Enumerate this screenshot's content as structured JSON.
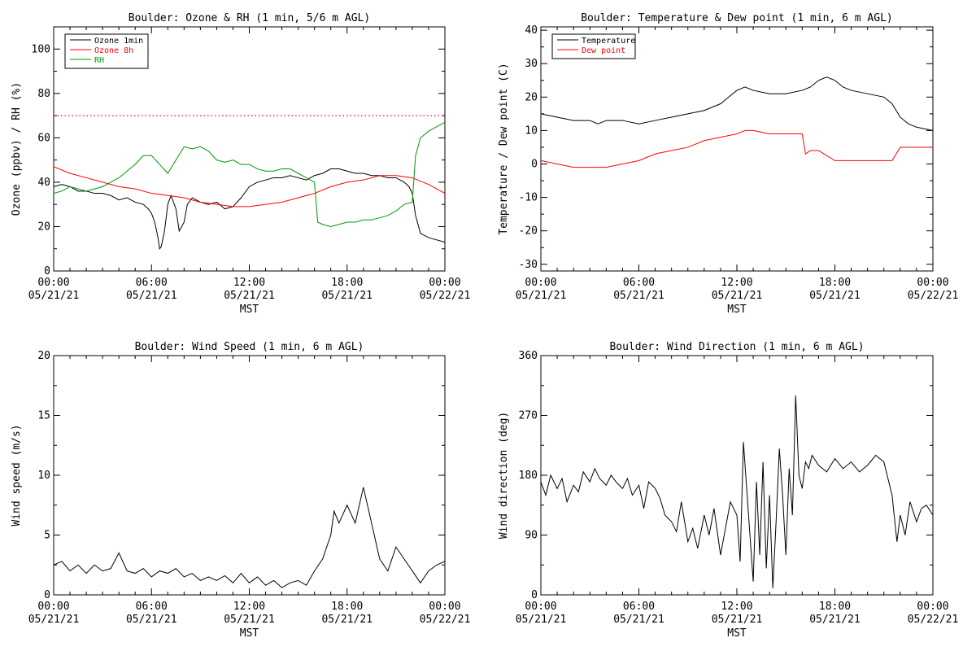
{
  "chart_data": [
    {
      "id": "ozone_rh",
      "type": "line",
      "title": "Boulder: Ozone & RH (1 min, 5/6 m AGL)",
      "xlabel": "MST",
      "ylabel": "Ozone (ppbv) / RH (%)",
      "ylim": [
        0,
        110
      ],
      "yticks": [
        0,
        20,
        40,
        60,
        80,
        100
      ],
      "xlim": [
        0,
        24
      ],
      "xticks": [
        {
          "v": 0,
          "top": "00:00",
          "bottom": "05/21/21"
        },
        {
          "v": 6,
          "top": "06:00",
          "bottom": "05/21/21"
        },
        {
          "v": 12,
          "top": "12:00",
          "bottom": "05/21/21"
        },
        {
          "v": 18,
          "top": "18:00",
          "bottom": "05/21/21"
        },
        {
          "v": 24,
          "top": "00:00",
          "bottom": "05/22/21"
        }
      ],
      "legend": "top-left",
      "reference_line": {
        "y": 70,
        "color": "#ff0000",
        "style": "dotted"
      },
      "series": [
        {
          "name": "Ozone 1min",
          "color": "#000000",
          "x": [
            0,
            0.5,
            1,
            1.5,
            2,
            2.5,
            3,
            3.5,
            4,
            4.5,
            5,
            5.5,
            5.8,
            6,
            6.2,
            6.4,
            6.5,
            6.6,
            6.8,
            7,
            7.2,
            7.5,
            7.7,
            8,
            8.2,
            8.5,
            9,
            9.5,
            10,
            10.5,
            11,
            11.5,
            12,
            12.5,
            13,
            13.5,
            14,
            14.5,
            15,
            15.5,
            16,
            16.5,
            17,
            17.5,
            18,
            18.5,
            19,
            19.5,
            20,
            20.5,
            21,
            21.5,
            21.8,
            22,
            22.2,
            22.5,
            23,
            23.5,
            24
          ],
          "y": [
            38,
            39,
            38,
            36,
            36,
            35,
            35,
            34,
            32,
            33,
            31,
            30,
            28,
            26,
            22,
            15,
            10,
            11,
            18,
            30,
            34,
            28,
            18,
            22,
            30,
            33,
            31,
            30,
            31,
            28,
            29,
            33,
            38,
            40,
            41,
            42,
            42,
            43,
            42,
            41,
            43,
            44,
            46,
            46,
            45,
            44,
            44,
            43,
            43,
            42,
            42,
            40,
            38,
            35,
            25,
            17,
            15,
            14,
            13
          ]
        },
        {
          "name": "Ozone 8h",
          "color": "#ff0000",
          "x": [
            0,
            1,
            2,
            3,
            4,
            5,
            6,
            7,
            8,
            9,
            10,
            11,
            12,
            13,
            14,
            15,
            16,
            17,
            18,
            19,
            20,
            21,
            22,
            23,
            24
          ],
          "y": [
            47,
            44,
            42,
            40,
            38,
            37,
            35,
            34,
            33,
            31,
            30,
            29,
            29,
            30,
            31,
            33,
            35,
            38,
            40,
            41,
            43,
            43,
            42,
            39,
            35
          ]
        },
        {
          "name": "RH",
          "color": "#009900",
          "x": [
            0,
            0.5,
            1,
            1.5,
            2,
            2.5,
            3,
            3.5,
            4,
            4.5,
            5,
            5.5,
            6,
            6.5,
            7,
            7.5,
            8,
            8.5,
            9,
            9.5,
            10,
            10.5,
            11,
            11.5,
            12,
            12.5,
            13,
            13.5,
            14,
            14.5,
            15,
            15.5,
            16,
            16.2,
            16.5,
            17,
            17.5,
            18,
            18.5,
            19,
            19.5,
            20,
            20.5,
            21,
            21.5,
            22,
            22.2,
            22.5,
            23,
            23.5,
            24
          ],
          "y": [
            35,
            36,
            38,
            37,
            36,
            37,
            38,
            40,
            42,
            45,
            48,
            52,
            52,
            48,
            44,
            50,
            56,
            55,
            56,
            54,
            50,
            49,
            50,
            48,
            48,
            46,
            45,
            45,
            46,
            46,
            44,
            42,
            40,
            22,
            21,
            20,
            21,
            22,
            22,
            23,
            23,
            24,
            25,
            27,
            30,
            31,
            52,
            60,
            63,
            65,
            67
          ]
        }
      ]
    },
    {
      "id": "temp_dew",
      "type": "line",
      "title": "Boulder: Temperature & Dew point (1 min, 6 m AGL)",
      "xlabel": "MST",
      "ylabel": "Temperature / Dew point (C)",
      "ylim": [
        -32,
        41
      ],
      "yticks": [
        -30,
        -20,
        -10,
        0,
        10,
        20,
        30,
        40
      ],
      "xlim": [
        0,
        24
      ],
      "xticks": [
        {
          "v": 0,
          "top": "00:00",
          "bottom": "05/21/21"
        },
        {
          "v": 6,
          "top": "06:00",
          "bottom": "05/21/21"
        },
        {
          "v": 12,
          "top": "12:00",
          "bottom": "05/21/21"
        },
        {
          "v": 18,
          "top": "18:00",
          "bottom": "05/21/21"
        },
        {
          "v": 24,
          "top": "00:00",
          "bottom": "05/22/21"
        }
      ],
      "legend": "top-left",
      "series": [
        {
          "name": "Temperature",
          "color": "#000000",
          "x": [
            0,
            1,
            2,
            3,
            3.5,
            4,
            5,
            6,
            7,
            8,
            9,
            10,
            11,
            11.5,
            12,
            12.5,
            13,
            14,
            15,
            16,
            16.5,
            17,
            17.5,
            18,
            18.5,
            19,
            20,
            21,
            21.5,
            22,
            22.5,
            23,
            24
          ],
          "y": [
            15,
            14,
            13,
            13,
            12,
            13,
            13,
            12,
            13,
            14,
            15,
            16,
            18,
            20,
            22,
            23,
            22,
            21,
            21,
            22,
            23,
            25,
            26,
            25,
            23,
            22,
            21,
            20,
            18,
            14,
            12,
            11,
            10
          ]
        },
        {
          "name": "Dew point",
          "color": "#ff0000",
          "x": [
            0,
            1,
            2,
            3,
            4,
            5,
            6,
            7,
            8,
            9,
            10,
            11,
            12,
            12.5,
            13,
            14,
            15,
            16,
            16.2,
            16.5,
            17,
            18,
            19,
            20,
            21,
            21.5,
            22,
            23,
            24
          ],
          "y": [
            1,
            0,
            -1,
            -1,
            -1,
            0,
            1,
            3,
            4,
            5,
            7,
            8,
            9,
            10,
            10,
            9,
            9,
            9,
            3,
            4,
            4,
            1,
            1,
            1,
            1,
            1,
            5,
            5,
            5
          ]
        }
      ]
    },
    {
      "id": "wind_speed",
      "type": "line",
      "title": "Boulder: Wind Speed (1 min, 6 m AGL)",
      "xlabel": "MST",
      "ylabel": "Wind speed (m/s)",
      "ylim": [
        0,
        20
      ],
      "yticks": [
        0,
        5,
        10,
        15,
        20
      ],
      "xlim": [
        0,
        24
      ],
      "xticks": [
        {
          "v": 0,
          "top": "00:00",
          "bottom": "05/21/21"
        },
        {
          "v": 6,
          "top": "06:00",
          "bottom": "05/21/21"
        },
        {
          "v": 12,
          "top": "12:00",
          "bottom": "05/21/21"
        },
        {
          "v": 18,
          "top": "18:00",
          "bottom": "05/21/21"
        },
        {
          "v": 24,
          "top": "00:00",
          "bottom": "05/22/21"
        }
      ],
      "series": [
        {
          "color": "#000000",
          "x": [
            0,
            0.5,
            1,
            1.5,
            2,
            2.5,
            3,
            3.5,
            4,
            4.5,
            5,
            5.5,
            6,
            6.5,
            7,
            7.5,
            8,
            8.5,
            9,
            9.5,
            10,
            10.5,
            11,
            11.5,
            12,
            12.5,
            13,
            13.5,
            14,
            14.5,
            15,
            15.5,
            16,
            16.5,
            17,
            17.2,
            17.5,
            18,
            18.5,
            19,
            19.5,
            20,
            20.5,
            21,
            21.5,
            22,
            22.5,
            23,
            23.5,
            24
          ],
          "y": [
            2.5,
            2.8,
            2,
            2.5,
            1.8,
            2.5,
            2,
            2.2,
            3.5,
            2,
            1.8,
            2.2,
            1.5,
            2,
            1.8,
            2.2,
            1.5,
            1.8,
            1.2,
            1.5,
            1.2,
            1.6,
            1,
            1.8,
            1,
            1.5,
            0.8,
            1.2,
            0.6,
            1,
            1.2,
            0.8,
            2,
            3,
            5,
            7,
            6,
            7.5,
            6,
            9,
            6,
            3,
            2,
            4,
            3,
            2,
            1,
            2,
            2.5,
            2.8
          ]
        }
      ]
    },
    {
      "id": "wind_dir",
      "type": "line",
      "title": "Boulder: Wind Direction (1 min, 6 m AGL)",
      "xlabel": "MST",
      "ylabel": "Wind direction (deg)",
      "ylim": [
        0,
        360
      ],
      "yticks": [
        0,
        90,
        180,
        270,
        360
      ],
      "xlim": [
        0,
        24
      ],
      "xticks": [
        {
          "v": 0,
          "top": "00:00",
          "bottom": "05/21/21"
        },
        {
          "v": 6,
          "top": "06:00",
          "bottom": "05/21/21"
        },
        {
          "v": 12,
          "top": "12:00",
          "bottom": "05/21/21"
        },
        {
          "v": 18,
          "top": "18:00",
          "bottom": "05/21/21"
        },
        {
          "v": 24,
          "top": "00:00",
          "bottom": "05/22/21"
        }
      ],
      "series": [
        {
          "color": "#000000",
          "x": [
            0,
            0.3,
            0.6,
            1,
            1.3,
            1.6,
            2,
            2.3,
            2.6,
            3,
            3.3,
            3.6,
            4,
            4.3,
            4.6,
            5,
            5.3,
            5.6,
            6,
            6.3,
            6.6,
            7,
            7.3,
            7.6,
            8,
            8.3,
            8.6,
            9,
            9.3,
            9.6,
            10,
            10.3,
            10.6,
            11,
            11.3,
            11.6,
            12,
            12.2,
            12.4,
            12.6,
            12.8,
            13,
            13.2,
            13.4,
            13.6,
            13.8,
            14,
            14.2,
            14.4,
            14.6,
            14.8,
            15,
            15.2,
            15.4,
            15.6,
            15.8,
            16,
            16.2,
            16.4,
            16.6,
            17,
            17.5,
            18,
            18.5,
            19,
            19.5,
            20,
            20.5,
            21,
            21.5,
            21.8,
            22,
            22.3,
            22.6,
            23,
            23.3,
            23.6,
            24
          ],
          "y": [
            170,
            150,
            180,
            160,
            175,
            140,
            165,
            155,
            185,
            170,
            190,
            175,
            165,
            180,
            170,
            160,
            175,
            150,
            165,
            130,
            170,
            160,
            145,
            120,
            110,
            95,
            140,
            80,
            100,
            70,
            120,
            90,
            130,
            60,
            100,
            140,
            120,
            50,
            230,
            160,
            90,
            20,
            170,
            60,
            200,
            40,
            150,
            10,
            110,
            220,
            150,
            60,
            190,
            120,
            300,
            180,
            160,
            200,
            190,
            210,
            195,
            185,
            205,
            190,
            200,
            185,
            195,
            210,
            200,
            150,
            80,
            120,
            90,
            140,
            110,
            130,
            135,
            120
          ]
        }
      ]
    }
  ]
}
